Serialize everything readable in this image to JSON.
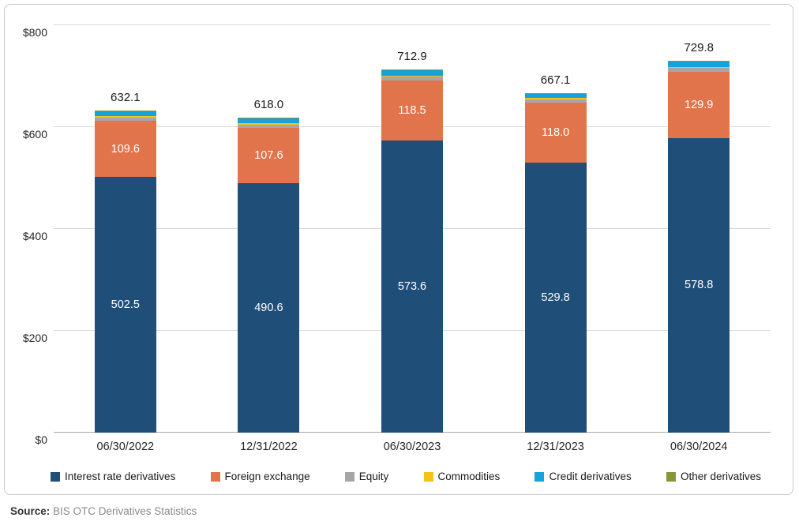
{
  "chart_data": {
    "type": "bar",
    "stacked": true,
    "title": "",
    "xlabel": "",
    "ylabel": "",
    "categories": [
      "06/30/2022",
      "12/31/2022",
      "06/30/2023",
      "12/31/2023",
      "06/30/2024"
    ],
    "series": [
      {
        "name": "Interest rate derivatives",
        "color": "#1f4e79",
        "labeled": true,
        "values": [
          502.5,
          490.6,
          573.6,
          529.8,
          578.8
        ]
      },
      {
        "name": "Foreign exchange",
        "color": "#e2744b",
        "labeled": true,
        "values": [
          109.6,
          107.6,
          118.5,
          118.0,
          129.9
        ]
      },
      {
        "name": "Equity",
        "color": "#a6a6a6",
        "labeled": false,
        "values": [
          6.9,
          7.0,
          7.3,
          7.0,
          7.5
        ]
      },
      {
        "name": "Commodities",
        "color": "#f3c317",
        "labeled": false,
        "values": [
          2.3,
          2.2,
          2.2,
          2.0,
          2.2
        ]
      },
      {
        "name": "Credit derivatives",
        "color": "#18a2dc",
        "labeled": false,
        "values": [
          9.3,
          9.3,
          9.9,
          8.9,
          10.0
        ]
      },
      {
        "name": "Other derivatives",
        "color": "#8a9438",
        "labeled": false,
        "values": [
          1.5,
          1.3,
          1.4,
          1.4,
          1.4
        ]
      }
    ],
    "totals": [
      "632.1",
      "618.0",
      "712.9",
      "667.1",
      "729.8"
    ],
    "ylim": [
      0,
      800
    ],
    "ytick_values": [
      0,
      200,
      400,
      600,
      800
    ],
    "ytick_labels": [
      "$0",
      "$200",
      "$400",
      "$600",
      "$800"
    ],
    "grid": true,
    "legend_position": "bottom"
  },
  "source": {
    "label": "Source:",
    "text": " BIS OTC Derivatives Statistics"
  }
}
